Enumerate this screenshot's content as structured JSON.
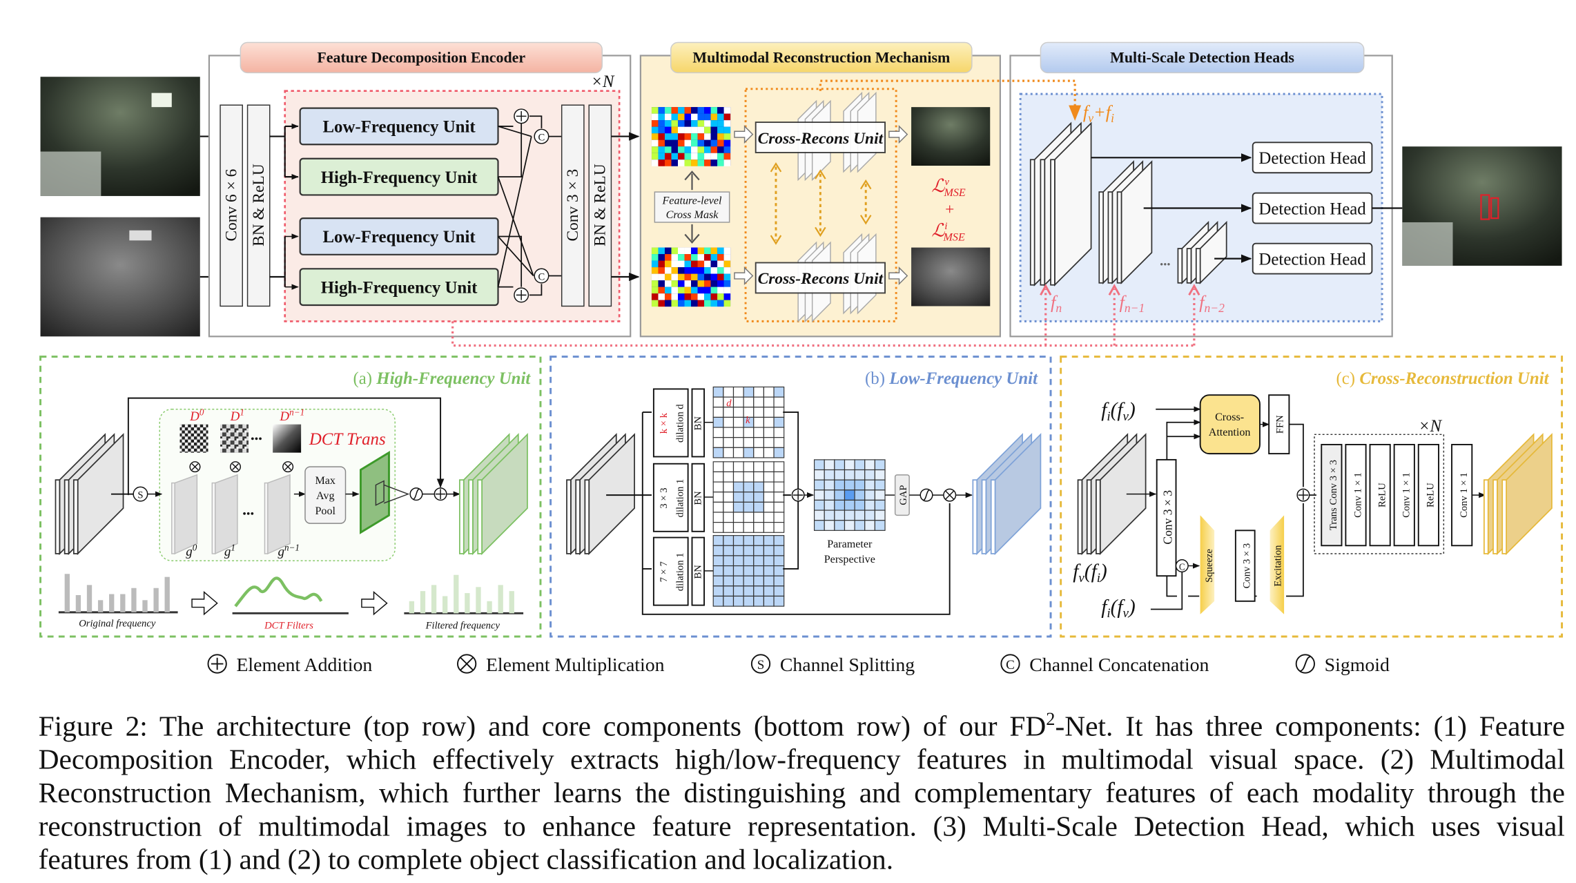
{
  "figure": {
    "encoder": {
      "title": "Feature Decomposition Encoder",
      "conv_in": "Conv 6 × 6",
      "bn_relu_in": "BN & ReLU",
      "units": [
        "Low-Frequency Unit",
        "High-Frequency Unit",
        "Low-Frequency Unit",
        "High-Frequency Unit"
      ],
      "conv_out": "Conv 3 × 3",
      "bn_relu_out": "BN & ReLU",
      "repeat": "×N",
      "concat": "C"
    },
    "reconstruction": {
      "title": "Multimodal Reconstruction Mechanism",
      "mask": [
        "Feature-level",
        "Cross Mask"
      ],
      "unit": "Cross-Recons Unit",
      "loss_v": [
        "ℒ",
        "v",
        "MSE"
      ],
      "plus": "+",
      "loss_i": [
        "ℒ",
        "i",
        "MSE"
      ]
    },
    "detection": {
      "title": "Multi-Scale Detection Heads",
      "heads": [
        "Detection Head",
        "Detection Head",
        "Detection Head"
      ],
      "fused": [
        "f",
        "v",
        "+f",
        "i"
      ],
      "fn": [
        "f",
        "n"
      ],
      "fn1": [
        "f",
        "n−1"
      ],
      "fn2": [
        "f",
        "n−2"
      ],
      "ellipsis": "•••"
    },
    "hf_unit": {
      "title_prefix": "(a) ",
      "title": "High-Frequency Unit",
      "D": [
        [
          "D",
          "0"
        ],
        [
          "D",
          "1"
        ],
        [
          "D",
          "n−1"
        ]
      ],
      "dct": "DCT Trans",
      "g": [
        [
          "g",
          "0"
        ],
        [
          "g",
          "1"
        ],
        [
          "g",
          "n−1"
        ]
      ],
      "pool": [
        "Max",
        "Avg",
        "Pool"
      ],
      "split": "S",
      "hist": [
        "Original frequency",
        "DCT Filters",
        "Filtered frequency"
      ]
    },
    "lf_unit": {
      "title_prefix": "(b) ",
      "title": "Low-Frequency Unit",
      "branches": [
        {
          "k": "k × k",
          "dil": "dilation d"
        },
        {
          "k": "3 × 3",
          "dil": "dilation 1"
        },
        {
          "k": "7 × 7",
          "dil": "dilation 1"
        }
      ],
      "bn": "BN",
      "d": "d",
      "kk": "k",
      "param": [
        "Parameter",
        "Perspective"
      ],
      "gap": "GAP"
    },
    "cr_unit": {
      "title_prefix": "(c) ",
      "title": "Cross-Reconstruction Unit",
      "attn": [
        "Cross-",
        "Attention"
      ],
      "ffn": "FFN",
      "conv": "Conv 3 × 3",
      "squeeze": "Squeeze",
      "conv2": "Conv 3 × 3",
      "excite": "Excitation",
      "concat": "C",
      "repeat": "×N",
      "stack": [
        "Trans Conv 3 × 3",
        "Conv 1 × 1",
        "ReLU",
        "Conv 1 × 1",
        "ReLU"
      ],
      "conv_out": "Conv 1 × 1",
      "in_top": [
        "f",
        "i",
        "(f",
        "v",
        ")"
      ],
      "in_mid": [
        "f",
        "v",
        "(f",
        "i",
        ")"
      ],
      "in_bot": [
        "f",
        "i",
        "(f",
        "v",
        ")"
      ]
    }
  },
  "legend": [
    {
      "icon": "plus-circle",
      "glyph": "+",
      "label": "Element Addition"
    },
    {
      "icon": "times-circle",
      "glyph": "×",
      "label": "Element Multiplication"
    },
    {
      "icon": "s-circle",
      "glyph": "S",
      "label": "Channel Splitting"
    },
    {
      "icon": "c-circle",
      "glyph": "C",
      "label": "Channel Concatenation"
    },
    {
      "icon": "sigmoid-circle",
      "glyph": "∫",
      "label": "Sigmoid"
    }
  ],
  "caption": {
    "line1_a": "Figure 2: The architecture (top row) and core components (bottom row) of our FD",
    "line1_sup": "2",
    "line1_b": "-Net. It has three components: (1) Feature",
    "line2": "Decomposition Encoder, which effectively extracts high/low-frequency features in multimodal visual space. (2) Multimodal",
    "line3": "Reconstruction Mechanism, which further learns the distinguishing and complementary features of each modality through the",
    "line4": "reconstruction of multimodal images to enhance feature representation. (3) Multi-Scale Detection Head, which uses visual",
    "line5": "features from (1) and (2) to complete object classification and localization."
  },
  "colors": {
    "encoder_title": "#f7c3b5",
    "recon_title": "#f9e08e",
    "detect_title": "#c7d8f2",
    "high_freq": "#7cc062",
    "low_freq": "#7fa3d8",
    "cross_recon": "#e6b93a",
    "loss_red": "#e0202a",
    "fused_orange": "#f08a1c",
    "feature_pink": "#f07080"
  }
}
